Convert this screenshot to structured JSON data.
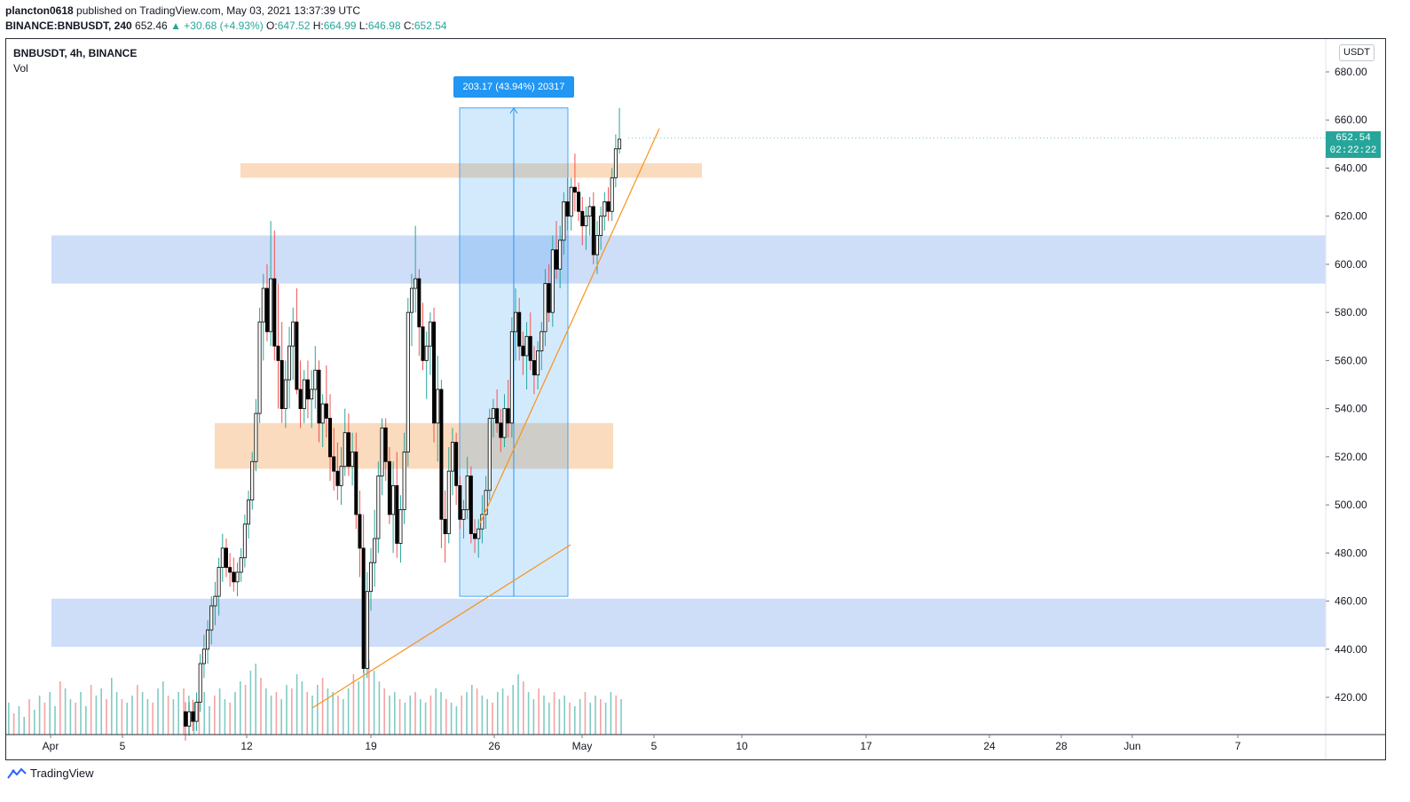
{
  "header": {
    "publisher": "plancton0618",
    "published_text": "published on TradingView.com, May 03, 2021 13:37:39 UTC",
    "symbol_full": "BINANCE:BNBUSDT, 240",
    "last": "652.46",
    "change": "▲ +30.68 (+4.93%)",
    "o_label": "O:",
    "o": "647.52",
    "h_label": "H:",
    "h": "664.99",
    "l_label": "L:",
    "l": "646.98",
    "c_label": "C:",
    "c": "652.54"
  },
  "legend": {
    "symbol": "BNBUSDT, 4h, BINANCE",
    "volume": "Vol"
  },
  "price_scale": {
    "unit": "USDT",
    "last_price": "652.54",
    "countdown": "02:22:22"
  },
  "measure": {
    "label": "203.17 (43.94%) 20317"
  },
  "footer": {
    "brand": "TradingView"
  },
  "colors": {
    "up": "#26a69a",
    "down": "#ef5350",
    "candle_body_up": "#ffffff",
    "candle_body_down": "#000000",
    "support_zone": "#bed1f5",
    "orange_zone": "#f8c89a",
    "trendline": "#f7931a",
    "measure": "#2196f3"
  },
  "chart_data": {
    "type": "candlestick",
    "title": "BNBUSDT, 4h, BINANCE",
    "ylim": [
      404,
      690
    ],
    "y_ticks": [
      420,
      440,
      460,
      480,
      500,
      520,
      540,
      560,
      580,
      600,
      620,
      640,
      660,
      680
    ],
    "x_ticks": [
      "Apr",
      "5",
      "12",
      "19",
      "26",
      "May",
      "5",
      "10",
      "17",
      "24",
      "28",
      "Jun",
      "7"
    ],
    "grid": false,
    "series": [
      {
        "kind": "ohlc",
        "candles": [
          [
            414,
            418,
            402,
            408
          ],
          [
            408,
            418,
            404,
            414
          ],
          [
            414,
            419,
            406,
            410
          ],
          [
            410,
            422,
            406,
            418
          ],
          [
            418,
            438,
            414,
            434
          ],
          [
            434,
            446,
            428,
            440
          ],
          [
            440,
            452,
            434,
            448
          ],
          [
            448,
            462,
            442,
            458
          ],
          [
            458,
            468,
            450,
            462
          ],
          [
            462,
            478,
            454,
            474
          ],
          [
            474,
            488,
            468,
            482
          ],
          [
            482,
            486,
            470,
            474
          ],
          [
            474,
            480,
            466,
            472
          ],
          [
            472,
            478,
            464,
            468
          ],
          [
            468,
            476,
            462,
            472
          ],
          [
            472,
            482,
            468,
            478
          ],
          [
            478,
            496,
            474,
            492
          ],
          [
            492,
            506,
            486,
            502
          ],
          [
            502,
            522,
            498,
            518
          ],
          [
            518,
            544,
            514,
            538
          ],
          [
            538,
            582,
            534,
            576
          ],
          [
            576,
            596,
            560,
            590
          ],
          [
            590,
            600,
            568,
            572
          ],
          [
            572,
            618,
            566,
            594
          ],
          [
            594,
            614,
            560,
            566
          ],
          [
            566,
            592,
            540,
            560
          ],
          [
            560,
            576,
            534,
            540
          ],
          [
            540,
            560,
            532,
            552
          ],
          [
            552,
            574,
            540,
            566
          ],
          [
            566,
            582,
            552,
            576
          ],
          [
            576,
            590,
            546,
            548
          ],
          [
            548,
            560,
            532,
            540
          ],
          [
            540,
            556,
            534,
            552
          ],
          [
            552,
            560,
            536,
            544
          ],
          [
            544,
            556,
            532,
            548
          ],
          [
            548,
            566,
            540,
            556
          ],
          [
            556,
            560,
            526,
            534
          ],
          [
            534,
            546,
            524,
            542
          ],
          [
            542,
            558,
            528,
            536
          ],
          [
            536,
            546,
            510,
            520
          ],
          [
            520,
            532,
            506,
            514
          ],
          [
            514,
            526,
            502,
            508
          ],
          [
            508,
            524,
            500,
            516
          ],
          [
            516,
            540,
            512,
            530
          ],
          [
            530,
            538,
            512,
            516
          ],
          [
            516,
            530,
            508,
            522
          ],
          [
            522,
            530,
            490,
            496
          ],
          [
            496,
            506,
            470,
            482
          ],
          [
            482,
            496,
            430,
            432
          ],
          [
            432,
            472,
            428,
            464
          ],
          [
            464,
            482,
            456,
            476
          ],
          [
            476,
            498,
            466,
            486
          ],
          [
            486,
            518,
            480,
            512
          ],
          [
            512,
            536,
            504,
            532
          ],
          [
            532,
            536,
            510,
            518
          ],
          [
            518,
            524,
            492,
            496
          ],
          [
            496,
            518,
            480,
            508
          ],
          [
            508,
            522,
            478,
            484
          ],
          [
            484,
            504,
            476,
            498
          ],
          [
            498,
            530,
            492,
            522
          ],
          [
            522,
            586,
            516,
            580
          ],
          [
            580,
            596,
            566,
            590
          ],
          [
            590,
            616,
            580,
            594
          ],
          [
            594,
            598,
            562,
            574
          ],
          [
            574,
            584,
            556,
            560
          ],
          [
            560,
            572,
            544,
            566
          ],
          [
            566,
            580,
            554,
            576
          ],
          [
            576,
            582,
            526,
            534
          ],
          [
            534,
            562,
            518,
            548
          ],
          [
            548,
            552,
            482,
            494
          ],
          [
            494,
            506,
            476,
            488
          ],
          [
            488,
            524,
            484,
            514
          ],
          [
            514,
            532,
            504,
            526
          ],
          [
            526,
            530,
            500,
            508
          ],
          [
            508,
            512,
            490,
            494
          ],
          [
            494,
            502,
            486,
            498
          ],
          [
            498,
            520,
            494,
            512
          ],
          [
            512,
            516,
            484,
            488
          ],
          [
            488,
            494,
            480,
            486
          ],
          [
            486,
            494,
            478,
            490
          ],
          [
            490,
            504,
            484,
            496
          ],
          [
            496,
            512,
            490,
            506
          ],
          [
            506,
            540,
            502,
            536
          ],
          [
            536,
            544,
            528,
            540
          ],
          [
            540,
            548,
            530,
            534
          ],
          [
            534,
            540,
            522,
            528
          ],
          [
            528,
            546,
            524,
            540
          ],
          [
            540,
            552,
            528,
            534
          ],
          [
            534,
            578,
            528,
            572
          ],
          [
            572,
            590,
            560,
            580
          ],
          [
            580,
            586,
            560,
            566
          ],
          [
            566,
            572,
            554,
            562
          ],
          [
            562,
            576,
            548,
            570
          ],
          [
            570,
            580,
            556,
            560
          ],
          [
            560,
            566,
            546,
            554
          ],
          [
            554,
            568,
            548,
            564
          ],
          [
            564,
            576,
            556,
            572
          ],
          [
            572,
            598,
            566,
            592
          ],
          [
            592,
            600,
            576,
            580
          ],
          [
            580,
            612,
            574,
            606
          ],
          [
            606,
            618,
            594,
            598
          ],
          [
            598,
            616,
            590,
            610
          ],
          [
            610,
            630,
            604,
            626
          ],
          [
            626,
            636,
            614,
            620
          ],
          [
            620,
            636,
            614,
            632
          ],
          [
            632,
            646,
            622,
            630
          ],
          [
            630,
            634,
            618,
            622
          ],
          [
            622,
            628,
            608,
            616
          ],
          [
            616,
            624,
            606,
            620
          ],
          [
            620,
            628,
            612,
            624
          ],
          [
            624,
            630,
            600,
            604
          ],
          [
            604,
            618,
            596,
            612
          ],
          [
            612,
            624,
            606,
            620
          ],
          [
            620,
            630,
            614,
            626
          ],
          [
            626,
            632,
            618,
            622
          ],
          [
            622,
            640,
            618,
            636
          ],
          [
            636,
            654,
            632,
            648
          ],
          [
            648,
            665,
            646,
            652
          ]
        ]
      },
      {
        "kind": "volume",
        "values": [
          18,
          12,
          16,
          10,
          20,
          14,
          22,
          18,
          24,
          16,
          30,
          26,
          20,
          18,
          24,
          16,
          28,
          22,
          26,
          20,
          32,
          24,
          20,
          18,
          22,
          28,
          24,
          20,
          18,
          26,
          30,
          22,
          20,
          24,
          26,
          22,
          18,
          20,
          24,
          16,
          22,
          26,
          20,
          18,
          24,
          30,
          28,
          36,
          40,
          32,
          26,
          22,
          24,
          20,
          28,
          26,
          34,
          30,
          24,
          22,
          28,
          32,
          26,
          24,
          22,
          20,
          26,
          34,
          30,
          38,
          42,
          36,
          30,
          26,
          22,
          24,
          20,
          18,
          22,
          24,
          20,
          18,
          22,
          26,
          24,
          20,
          18,
          16,
          22,
          24,
          28,
          26,
          22,
          20,
          18,
          24,
          26,
          22,
          28,
          34,
          30,
          24,
          20,
          26,
          22,
          18,
          24,
          20,
          22,
          18,
          16,
          20,
          24,
          18,
          22,
          20,
          18,
          24,
          22,
          20
        ]
      }
    ],
    "zones": [
      {
        "kind": "support",
        "y_low": 592,
        "y_high": 612
      },
      {
        "kind": "support",
        "y_low": 441,
        "y_high": 461
      },
      {
        "kind": "resistance",
        "y_low": 636,
        "y_high": 642
      },
      {
        "kind": "resistance",
        "y_low": 515,
        "y_high": 534
      }
    ]
  }
}
